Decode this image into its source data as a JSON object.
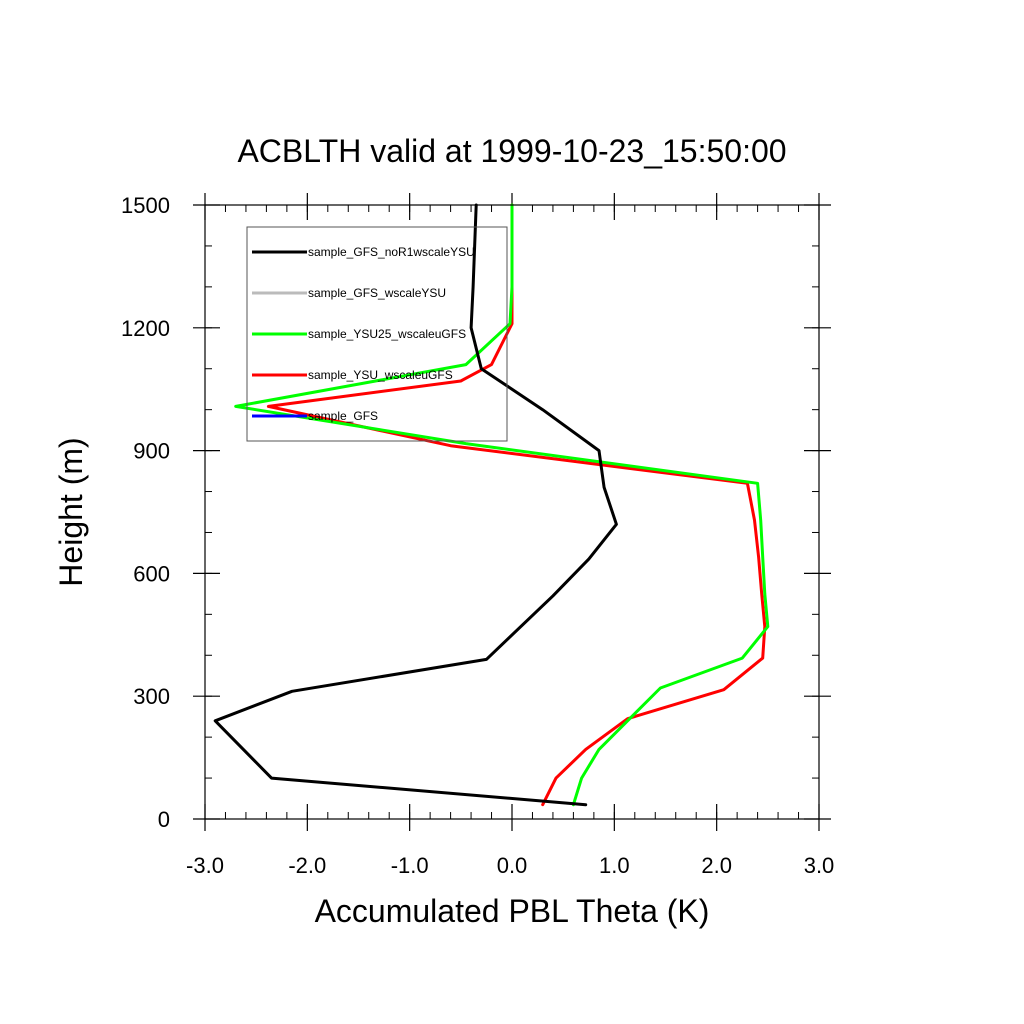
{
  "chart_data": {
    "type": "line",
    "title": "ACBLTH valid at 1999-10-23_15:50:00",
    "xlabel": "Accumulated PBL Theta (K)",
    "ylabel": "Height (m)",
    "xlim": [
      -3.0,
      3.0
    ],
    "ylim": [
      0,
      1500
    ],
    "xticks": [
      -3.0,
      -2.0,
      -1.0,
      0.0,
      1.0,
      2.0,
      3.0
    ],
    "xtick_labels": [
      "-3.0",
      "-2.0",
      "-1.0",
      "0.0",
      "1.0",
      "2.0",
      "3.0"
    ],
    "yticks": [
      0,
      300,
      600,
      900,
      1200,
      1500
    ],
    "ytick_labels": [
      "0",
      "300",
      "600",
      "900",
      "1200",
      "1500"
    ],
    "grid": false,
    "legend_position": "top-left",
    "series": [
      {
        "name": "sample_GFS_noR1wscaleYSU",
        "color": "#000000",
        "points": [
          [
            0.72,
            35
          ],
          [
            -2.35,
            100
          ],
          [
            -2.9,
            240
          ],
          [
            -2.15,
            312
          ],
          [
            -0.25,
            390
          ],
          [
            0.4,
            545
          ],
          [
            0.75,
            635
          ],
          [
            1.02,
            720
          ],
          [
            0.9,
            810
          ],
          [
            0.85,
            900
          ],
          [
            0.3,
            1000
          ],
          [
            -0.3,
            1100
          ],
          [
            -0.4,
            1200
          ],
          [
            -0.38,
            1300
          ],
          [
            -0.35,
            1500
          ]
        ]
      },
      {
        "name": "sample_GFS_wscaleYSU",
        "color": "#bbbbbb",
        "points": []
      },
      {
        "name": "sample_YSU25_wscaleuGFS",
        "color": "#00ff00",
        "points": [
          [
            0.6,
            35
          ],
          [
            0.68,
            100
          ],
          [
            0.85,
            170
          ],
          [
            1.15,
            245
          ],
          [
            1.45,
            320
          ],
          [
            2.25,
            393
          ],
          [
            2.5,
            470
          ],
          [
            2.47,
            550
          ],
          [
            2.45,
            640
          ],
          [
            2.43,
            730
          ],
          [
            2.4,
            820
          ],
          [
            -0.45,
            917
          ],
          [
            -2.7,
            1008
          ],
          [
            -0.45,
            1110
          ],
          [
            -0.02,
            1210
          ],
          [
            0.0,
            1300
          ],
          [
            0.0,
            1500
          ]
        ]
      },
      {
        "name": "sample_YSU_wscaleuGFS",
        "color": "#ff0000",
        "points": [
          [
            0.3,
            35
          ],
          [
            0.43,
            100
          ],
          [
            0.72,
            170
          ],
          [
            1.13,
            245
          ],
          [
            2.07,
            316
          ],
          [
            2.45,
            393
          ],
          [
            2.47,
            470
          ],
          [
            2.44,
            550
          ],
          [
            2.41,
            640
          ],
          [
            2.37,
            730
          ],
          [
            2.3,
            820
          ],
          [
            -0.6,
            912
          ],
          [
            -2.38,
            1008
          ],
          [
            -0.5,
            1070
          ],
          [
            -0.2,
            1110
          ],
          [
            0.0,
            1210
          ],
          [
            0.0,
            1300
          ],
          [
            0.0,
            1500
          ]
        ]
      },
      {
        "name": "sample_GFS",
        "color": "#0000ff",
        "points": []
      }
    ]
  }
}
